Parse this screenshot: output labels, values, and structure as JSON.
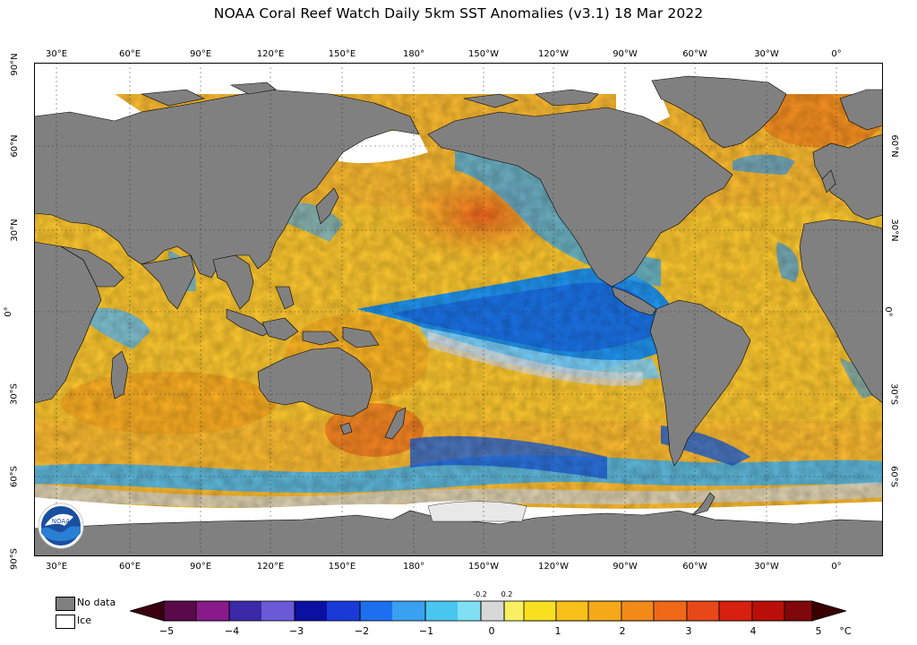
{
  "title": "NOAA Coral Reef Watch Daily 5km SST Anomalies  (v3.1)   18 Mar 2022",
  "lon_labels": [
    "30°E",
    "60°E",
    "90°E",
    "120°E",
    "150°E",
    "180°",
    "150°W",
    "120°W",
    "90°W",
    "60°W",
    "30°W",
    "0°"
  ],
  "lat_labels_left": [
    "90°N",
    "60°N",
    "30°N",
    "0°",
    "30°S",
    "60°S",
    "90°S"
  ],
  "lat_labels_right": [
    "60°N",
    "30°N",
    "0°",
    "30°S",
    "60°S"
  ],
  "legend": {
    "no_data": "No data",
    "ice": "Ice"
  },
  "colorbar": {
    "ticks": [
      "−5",
      "−4",
      "−3",
      "−2",
      "−1",
      "0",
      "1",
      "2",
      "3",
      "4",
      "5"
    ],
    "small_ticks": [
      "-0.2",
      "0.2"
    ],
    "unit": "°C"
  },
  "colors": {
    "land": "#808080",
    "ice": "#ffffff",
    "ocean_warm": "#f5a623",
    "ocean_cool": "#1e90ff",
    "neutral": "#d3d3d3"
  },
  "logo": {
    "text": "NOAA"
  }
}
